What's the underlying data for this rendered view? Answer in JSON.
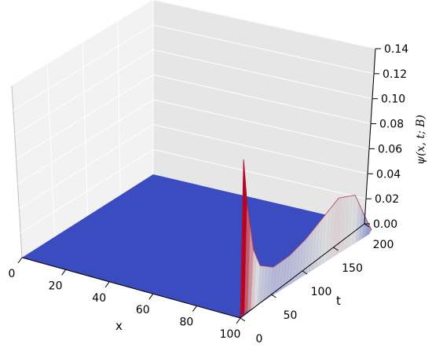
{
  "chart_data": {
    "type": "surface",
    "xlabel": "x",
    "ylabel": "t",
    "zlabel": "ψ(x, t; B)",
    "xlim": [
      0,
      100
    ],
    "ylim": [
      0,
      200
    ],
    "zlim": [
      0,
      0.14
    ],
    "x_ticks": [
      "0",
      "20",
      "40",
      "60",
      "80",
      "100"
    ],
    "y_ticks": [
      "0",
      "50",
      "100",
      "150",
      "200"
    ],
    "z_ticks": [
      "0.00",
      "0.02",
      "0.04",
      "0.06",
      "0.08",
      "0.10",
      "0.12",
      "0.14"
    ],
    "grid": true,
    "colormap": "coolwarm",
    "floor_color": "#3b4cc0",
    "profile_at_x_100": {
      "t": [
        0,
        5,
        10,
        20,
        30,
        50,
        75,
        100,
        125,
        150,
        175,
        190,
        200
      ],
      "psi": [
        0.0,
        0.125,
        0.09,
        0.048,
        0.032,
        0.024,
        0.025,
        0.03,
        0.038,
        0.046,
        0.04,
        0.018,
        0.004
      ]
    }
  }
}
